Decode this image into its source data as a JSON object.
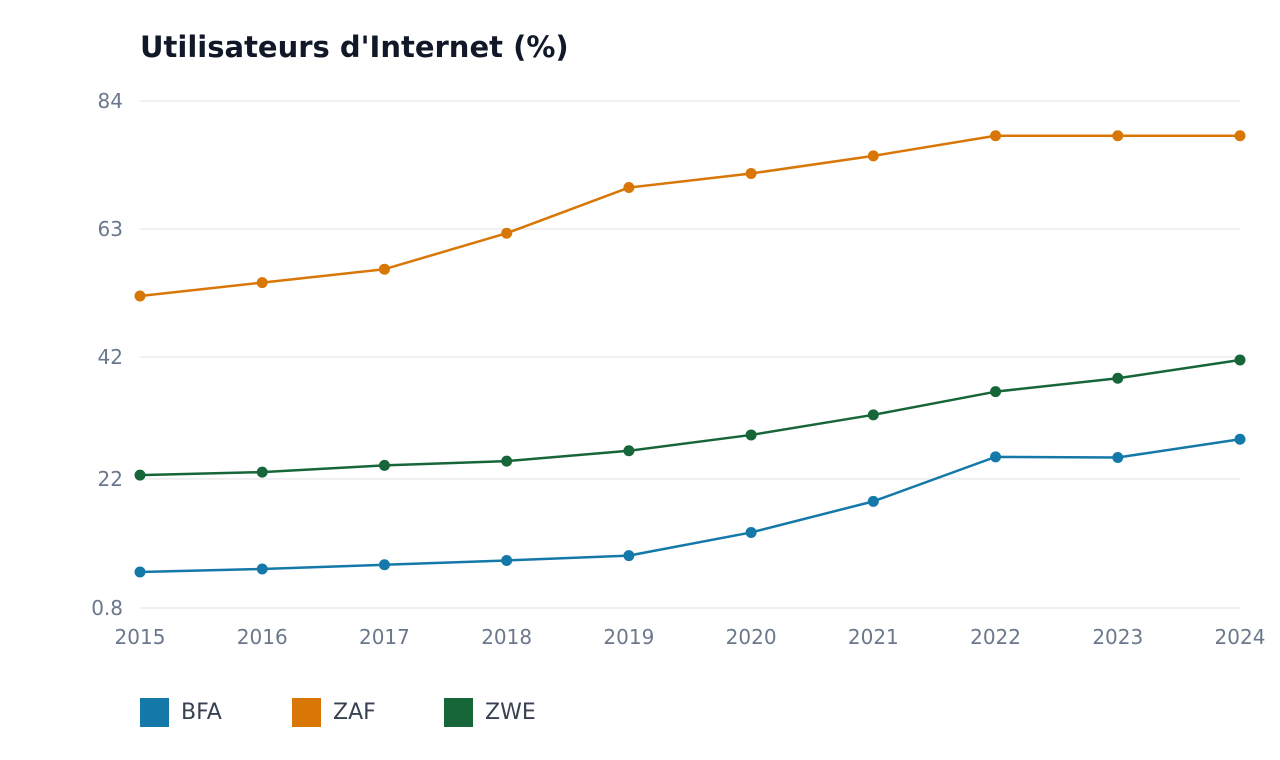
{
  "chart_data": {
    "type": "line",
    "title": "Utilisateurs d'Internet (%)",
    "xlabel": "",
    "ylabel": "",
    "x": [
      "2015",
      "2016",
      "2017",
      "2018",
      "2019",
      "2020",
      "2021",
      "2022",
      "2023",
      "2024"
    ],
    "yticks": [
      "0.8",
      "22",
      "42",
      "63",
      "84"
    ],
    "ylim": [
      0.8,
      84
    ],
    "grid": true,
    "legend_position": "bottom-left",
    "series": [
      {
        "name": "BFA",
        "color": "#1479a8",
        "values": [
          6.7,
          7.2,
          7.9,
          8.6,
          9.4,
          13.2,
          18.3,
          25.6,
          25.5,
          28.5
        ]
      },
      {
        "name": "ZAF",
        "color": "#d97706",
        "values": [
          52.0,
          54.2,
          56.4,
          62.3,
          69.8,
          72.1,
          75.0,
          78.3,
          78.3,
          78.3
        ]
      },
      {
        "name": "ZWE",
        "color": "#17663a",
        "values": [
          22.6,
          23.1,
          24.2,
          24.9,
          26.6,
          29.2,
          32.5,
          36.3,
          38.5,
          41.5
        ]
      }
    ]
  }
}
